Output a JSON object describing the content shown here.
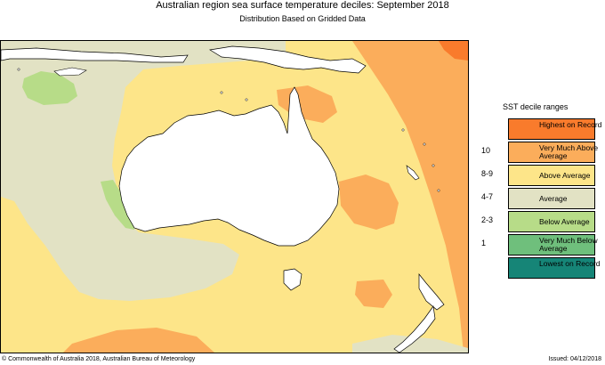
{
  "title": "Australian region sea surface temperature deciles:  September 2018",
  "subtitle": "Distribution Based on Gridded Data",
  "legend": {
    "title": "SST decile ranges",
    "items": [
      {
        "range": "",
        "label": "Highest on Record",
        "color": "#f97b2c"
      },
      {
        "range": "10",
        "label": "Very Much Above Average",
        "color": "#fbad5b"
      },
      {
        "range": "8-9",
        "label": "Above Average",
        "color": "#fde589"
      },
      {
        "range": "4-7",
        "label": "Average",
        "color": "#e2e2c4"
      },
      {
        "range": "2-3",
        "label": "Below Average",
        "color": "#b7dc88"
      },
      {
        "range": "1",
        "label": "Very Much Below Average",
        "color": "#6fbf7c"
      },
      {
        "range": "",
        "label": "Lowest on Record",
        "color": "#168577"
      }
    ]
  },
  "colors": {
    "land": "#ffffff",
    "highest": "#f97b2c",
    "very_much_above": "#fbad5b",
    "above": "#fde589",
    "average": "#e2e2c4",
    "below": "#b7dc88"
  },
  "footer": {
    "copyright": "© Commonwealth of Australia 2018, Australian Bureau of Meteorology",
    "issued": "Issued: 04/12/2018"
  }
}
